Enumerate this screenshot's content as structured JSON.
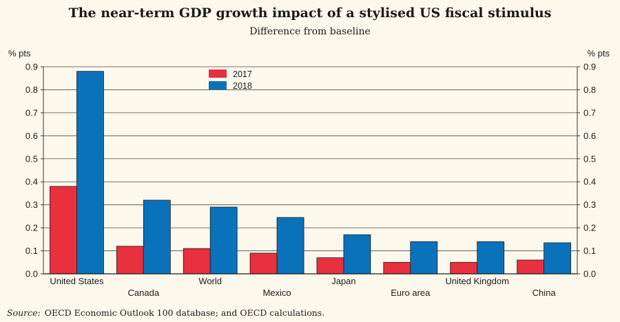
{
  "title": "The near-term GDP growth impact of a stylised US fiscal stimulus",
  "subtitle": "Difference from baseline",
  "source": {
    "label": "Source:",
    "text": "OECD Economic Outlook 100 database; and OECD calculations."
  },
  "chart_data": {
    "type": "bar",
    "categories": [
      "United States",
      "Canada",
      "World",
      "Mexico",
      "Japan",
      "Euro area",
      "United Kingdom",
      "China"
    ],
    "series": [
      {
        "name": "2017",
        "color": "#e8303f",
        "values": [
          0.38,
          0.12,
          0.11,
          0.09,
          0.07,
          0.05,
          0.05,
          0.06
        ]
      },
      {
        "name": "2018",
        "color": "#0a72ba",
        "values": [
          0.88,
          0.32,
          0.29,
          0.245,
          0.17,
          0.14,
          0.14,
          0.135
        ]
      }
    ],
    "ylabel_left": "% pts",
    "ylabel_right": "% pts",
    "ylim": [
      0,
      0.9
    ],
    "yticks": [
      "0.0",
      "0.1",
      "0.2",
      "0.3",
      "0.4",
      "0.5",
      "0.6",
      "0.7",
      "0.8",
      "0.9"
    ],
    "grid": true,
    "legend_position": "top-left"
  }
}
